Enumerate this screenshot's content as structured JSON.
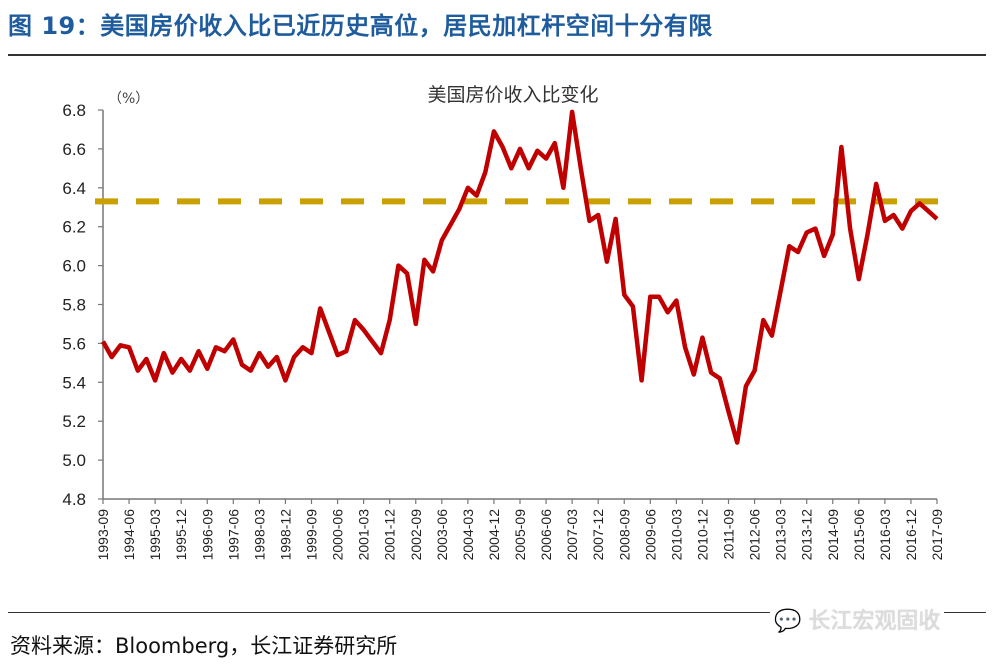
{
  "figure": {
    "title": "图 19：美国房价收入比已近历史高位，居民加杠杆空间十分有限",
    "source": "资料来源：Bloomberg，长江证券研究所",
    "watermark": "长江宏观固收",
    "watermark_icon": "wechat-icon"
  },
  "chart_data": {
    "type": "line",
    "title": "美国房价收入比变化",
    "ylabel": "（%）",
    "xlabel": "",
    "ylim": [
      4.8,
      6.8
    ],
    "yticks": [
      "6.8",
      "6.6",
      "6.4",
      "6.2",
      "6.0",
      "5.8",
      "5.6",
      "5.4",
      "5.2",
      "5.0",
      "4.8"
    ],
    "grid": false,
    "x_tick_labels": [
      "1993-09",
      "1994-06",
      "1995-03",
      "1995-12",
      "1996-09",
      "1997-06",
      "1998-03",
      "1998-12",
      "1999-09",
      "2000-06",
      "2001-03",
      "2001-12",
      "2002-09",
      "2003-06",
      "2004-03",
      "2004-12",
      "2005-09",
      "2006-06",
      "2007-03",
      "2007-12",
      "2008-09",
      "2009-06",
      "2010-03",
      "2010-12",
      "2011-09",
      "2012-06",
      "2013-03",
      "2013-12",
      "2014-09",
      "2015-06",
      "2016-03",
      "2016-12",
      "2017-09"
    ],
    "x": [
      "1993-09",
      "1993-12",
      "1994-03",
      "1994-06",
      "1994-09",
      "1994-12",
      "1995-03",
      "1995-06",
      "1995-09",
      "1995-12",
      "1996-03",
      "1996-06",
      "1996-09",
      "1996-12",
      "1997-03",
      "1997-06",
      "1997-09",
      "1997-12",
      "1998-03",
      "1998-06",
      "1998-09",
      "1998-12",
      "1999-03",
      "1999-06",
      "1999-09",
      "1999-12",
      "2000-03",
      "2000-06",
      "2000-09",
      "2000-12",
      "2001-03",
      "2001-06",
      "2001-09",
      "2001-12",
      "2002-03",
      "2002-06",
      "2002-09",
      "2002-12",
      "2003-03",
      "2003-06",
      "2003-09",
      "2003-12",
      "2004-03",
      "2004-06",
      "2004-09",
      "2004-12",
      "2005-03",
      "2005-06",
      "2005-09",
      "2005-12",
      "2006-03",
      "2006-06",
      "2006-09",
      "2006-12",
      "2007-03",
      "2007-06",
      "2007-09",
      "2007-12",
      "2008-03",
      "2008-06",
      "2008-09",
      "2008-12",
      "2009-03",
      "2009-06",
      "2009-09",
      "2009-12",
      "2010-03",
      "2010-06",
      "2010-09",
      "2010-12",
      "2011-03",
      "2011-06",
      "2011-09",
      "2011-12",
      "2012-03",
      "2012-06",
      "2012-09",
      "2012-12",
      "2013-03",
      "2013-06",
      "2013-09",
      "2013-12",
      "2014-03",
      "2014-06",
      "2014-09",
      "2014-12",
      "2015-03",
      "2015-06",
      "2015-09",
      "2015-12",
      "2016-03",
      "2016-06",
      "2016-09",
      "2016-12",
      "2017-03",
      "2017-06",
      "2017-09"
    ],
    "series": [
      {
        "color": "#c00000",
        "values": [
          5.61,
          5.53,
          5.59,
          5.58,
          5.46,
          5.52,
          5.41,
          5.55,
          5.45,
          5.52,
          5.46,
          5.56,
          5.47,
          5.58,
          5.56,
          5.62,
          5.49,
          5.46,
          5.55,
          5.48,
          5.53,
          5.41,
          5.53,
          5.58,
          5.55,
          5.78,
          5.66,
          5.54,
          5.56,
          5.72,
          5.67,
          5.61,
          5.55,
          5.72,
          6.0,
          5.96,
          5.7,
          6.03,
          5.97,
          6.13,
          6.21,
          6.29,
          6.4,
          6.36,
          6.48,
          6.69,
          6.61,
          6.5,
          6.6,
          6.5,
          6.59,
          6.55,
          6.63,
          6.4,
          6.79,
          6.5,
          6.23,
          6.26,
          6.02,
          6.24,
          5.85,
          5.79,
          5.41,
          5.84,
          5.84,
          5.76,
          5.82,
          5.58,
          5.44,
          5.63,
          5.45,
          5.42,
          5.25,
          5.09,
          5.38,
          5.46,
          5.72,
          5.64,
          5.87,
          6.1,
          6.07,
          6.17,
          6.19,
          6.05,
          6.16,
          6.61,
          6.19,
          5.93,
          6.16,
          6.42,
          6.23,
          6.26,
          6.19,
          6.28,
          6.32,
          6.28,
          6.24
        ]
      }
    ],
    "reference_line": {
      "value": 6.33,
      "color": "#c9a000",
      "style": "dashed"
    }
  }
}
